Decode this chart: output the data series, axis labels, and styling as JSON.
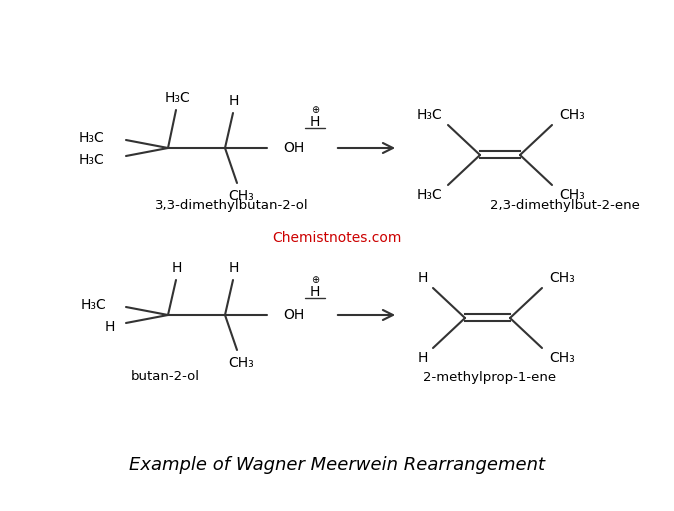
{
  "title": "Example of Wagner Meerwein Rearrangement",
  "title_fontsize": 13,
  "watermark": "Chemistnotes.com",
  "watermark_color": "#cc0000",
  "bg_color": "#ffffff",
  "label1": "3,3-dimethylbutan-2-ol",
  "label2": "2,3-dimethylbut-2-ene",
  "label3": "butan-2-ol",
  "label4": "2-methylprop-1-ene",
  "font_size": 10,
  "font_size_label": 9.5
}
